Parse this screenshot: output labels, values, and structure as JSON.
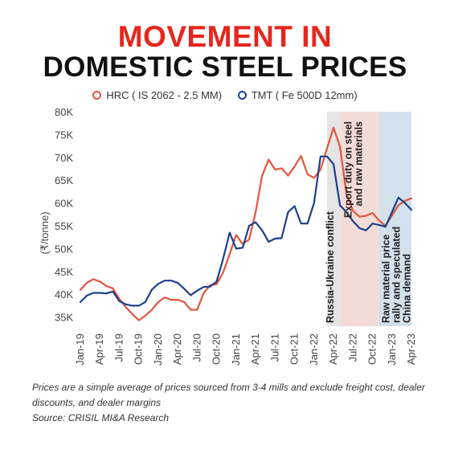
{
  "title": {
    "line1": "MOVEMENT IN",
    "line2": "DOMESTIC STEEL PRICES",
    "line1_color": "#e5261f",
    "line2_color": "#111111"
  },
  "footnote": "Prices are a simple average of prices sourced from 3-4 mills and exclude  freight cost, dealer discounts, and dealer margins",
  "source": "Source: CRISIL MI&A Research",
  "chart_data": {
    "type": "line",
    "ylabel": "(₹/tonne)",
    "ylim": [
      33000,
      80000
    ],
    "yticks": [
      35000,
      40000,
      45000,
      50000,
      55000,
      60000,
      65000,
      70000,
      75000,
      80000
    ],
    "ytick_labels": [
      "35K",
      "40K",
      "45K",
      "50K",
      "55K",
      "60K",
      "65K",
      "70K",
      "75K",
      "80K"
    ],
    "xtick_labels": [
      "Jan-19",
      "Apr-19",
      "Jul-19",
      "Oct-19",
      "Jan-20",
      "Apr-20",
      "Jul-20",
      "Oct-20",
      "Jan-21",
      "Apr-21",
      "Jul-21",
      "Oct-21",
      "Jan-22",
      "Apr-22",
      "Jul-22",
      "Oct-22",
      "Jan-23",
      "Apr-23"
    ],
    "x": [
      "Jan-19",
      "Feb-19",
      "Mar-19",
      "Apr-19",
      "May-19",
      "Jun-19",
      "Jul-19",
      "Aug-19",
      "Sep-19",
      "Oct-19",
      "Nov-19",
      "Dec-19",
      "Jan-20",
      "Feb-20",
      "Mar-20",
      "Apr-20",
      "May-20",
      "Jun-20",
      "Jul-20",
      "Aug-20",
      "Sep-20",
      "Oct-20",
      "Nov-20",
      "Dec-20",
      "Jan-21",
      "Feb-21",
      "Mar-21",
      "Apr-21",
      "May-21",
      "Jun-21",
      "Jul-21",
      "Aug-21",
      "Sep-21",
      "Oct-21",
      "Nov-21",
      "Dec-21",
      "Jan-22",
      "Feb-22",
      "Mar-22",
      "Apr-22",
      "May-22",
      "Jun-22",
      "Jul-22",
      "Aug-22",
      "Sep-22",
      "Oct-22",
      "Nov-22",
      "Dec-22",
      "Jan-23",
      "Feb-23",
      "Mar-23",
      "Apr-23"
    ],
    "series": [
      {
        "name": "HRC ( IS 2062 - 2.5 MM)",
        "color": "#e2543e",
        "values": [
          41000,
          42500,
          43300,
          42800,
          41800,
          41300,
          39000,
          37200,
          35700,
          34300,
          35300,
          36600,
          38300,
          39300,
          38800,
          38800,
          38300,
          36600,
          36600,
          40300,
          42000,
          42200,
          44800,
          48800,
          53000,
          51000,
          52000,
          58000,
          66000,
          69500,
          67300,
          67600,
          66000,
          68000,
          70300,
          66300,
          65500,
          67300,
          72000,
          76500,
          72300,
          62000,
          58300,
          57000,
          57200,
          57800,
          56200,
          55000,
          57300,
          59500,
          60500,
          61000
        ]
      },
      {
        "name": "TMT ( Fe 500D 12mm)",
        "color": "#1c3f8a",
        "values": [
          38300,
          39700,
          40300,
          40300,
          40200,
          40600,
          38500,
          37800,
          37500,
          37500,
          38300,
          41000,
          42300,
          43000,
          43000,
          42500,
          41200,
          39800,
          40800,
          41600,
          41700,
          42800,
          47800,
          53500,
          50000,
          50200,
          55000,
          55800,
          54000,
          51500,
          52200,
          52300,
          58000,
          59300,
          55500,
          55500,
          60000,
          70200,
          70200,
          68500,
          59500,
          58000,
          56000,
          54500,
          54000,
          55500,
          55200,
          54800,
          58000,
          61200,
          60000,
          58500
        ]
      }
    ],
    "shaded_regions": [
      {
        "start": "Mar-22",
        "end": "May-22",
        "color": "#e4e4e4",
        "label": "Russia-Ukraine conflict"
      },
      {
        "start": "May-22",
        "end": "Nov-22",
        "color": "#f3dcd8",
        "label_lines": [
          "Export duty on steel",
          "and raw materials"
        ]
      },
      {
        "start": "Nov-22",
        "end": "Apr-23",
        "color": "#d3e1ec",
        "label_lines": [
          "Raw material price",
          "rally and speculated",
          "China demand"
        ]
      }
    ]
  }
}
